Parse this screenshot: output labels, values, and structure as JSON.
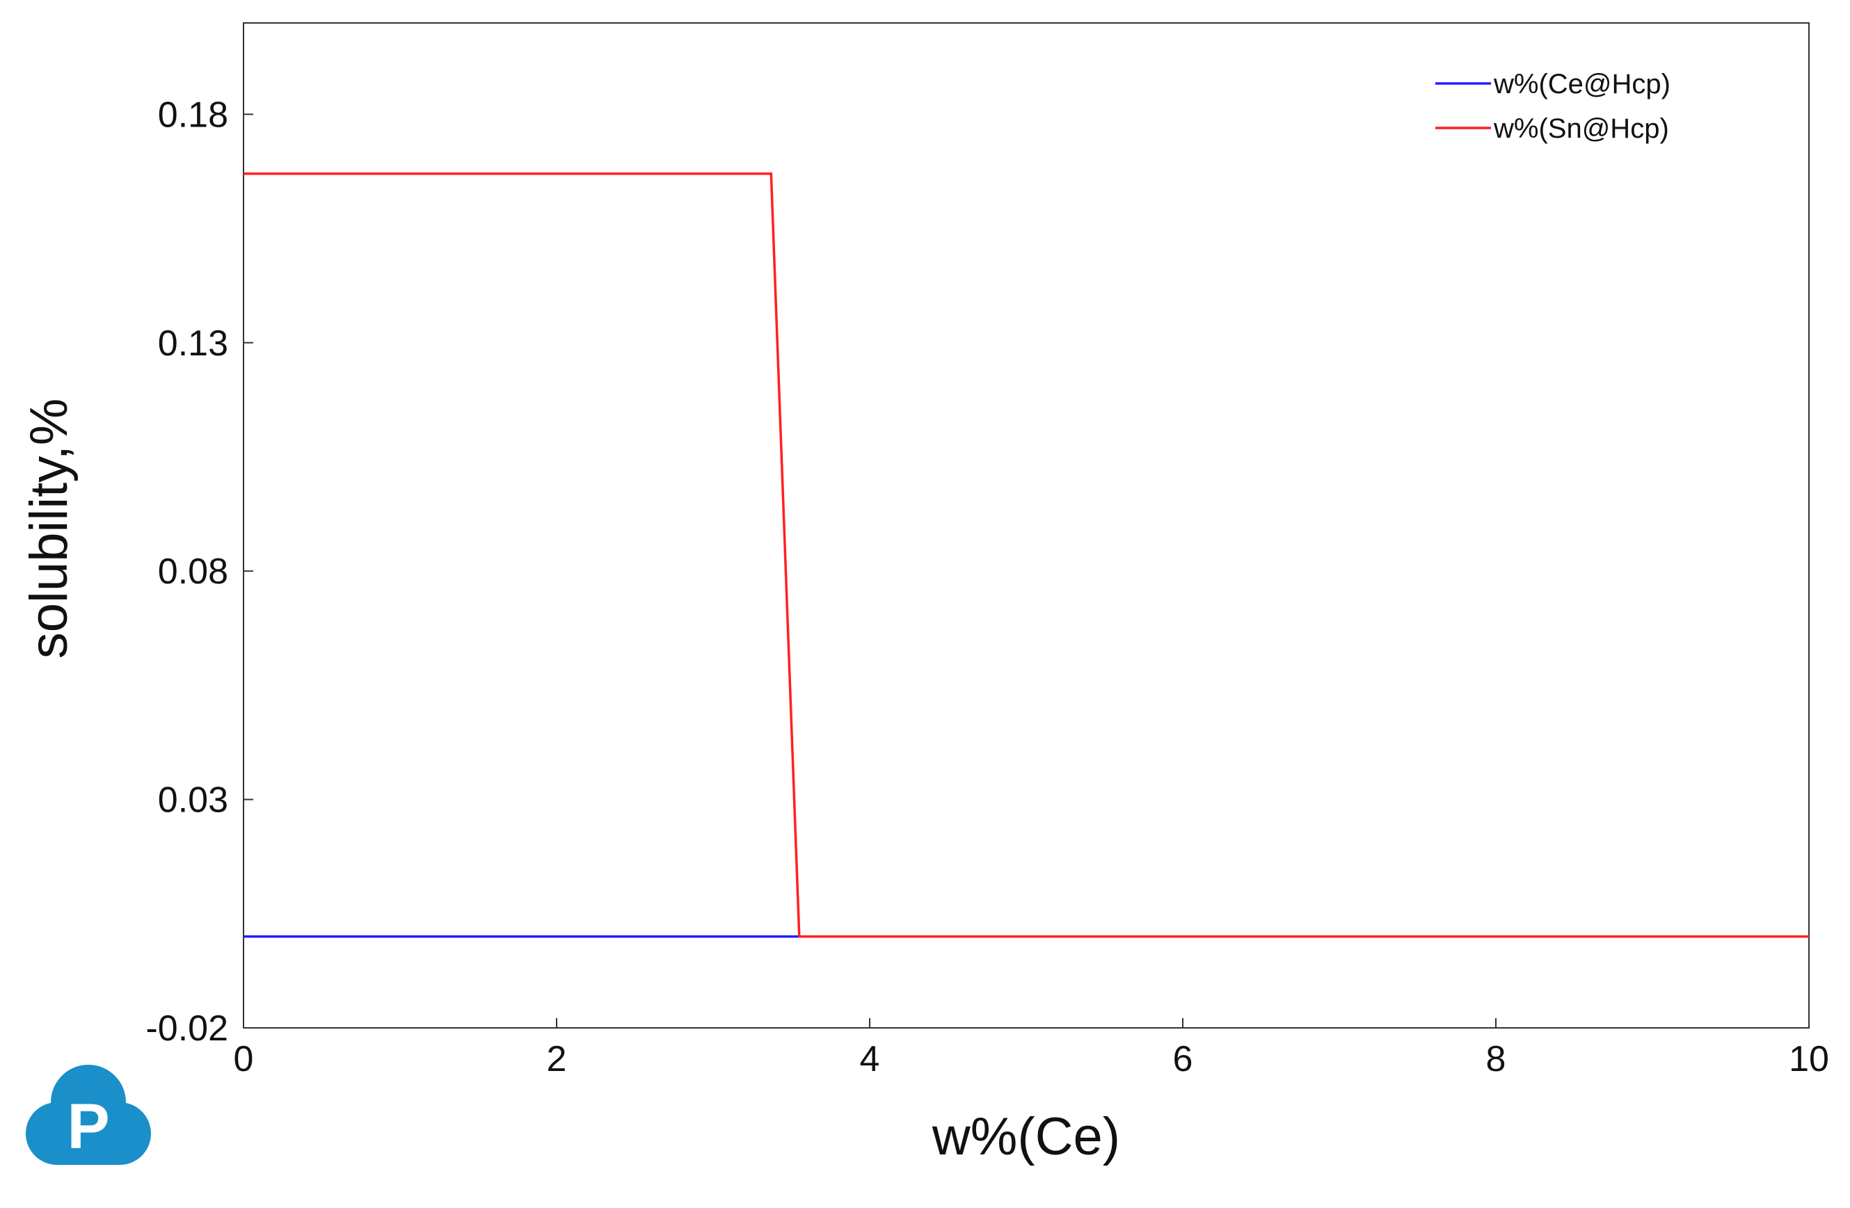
{
  "chart_data": {
    "type": "line",
    "title": "",
    "xlabel": "w%(Ce)",
    "ylabel": "solubility,%",
    "xlim": [
      0,
      10
    ],
    "ylim": [
      -0.02,
      0.2
    ],
    "x_ticks": [
      0,
      2,
      4,
      6,
      8,
      10
    ],
    "x_tick_labels": [
      "0",
      "2",
      "4",
      "6",
      "8",
      "10"
    ],
    "y_ticks": [
      -0.02,
      0.03,
      0.08,
      0.13,
      0.18
    ],
    "y_tick_labels": [
      "-0.02",
      "0.03",
      "0.08",
      "0.13",
      "0.18"
    ],
    "grid": false,
    "legend_position": "top-right",
    "series": [
      {
        "name": "w%(Ce@Hcp)",
        "color": "#1f1fff",
        "x": [
          0,
          3.55
        ],
        "y": [
          0,
          0
        ]
      },
      {
        "name": "w%(Sn@Hcp)",
        "color": "#ff2020",
        "x": [
          0,
          3.37,
          3.55,
          10
        ],
        "y": [
          0.167,
          0.167,
          0,
          0
        ]
      }
    ]
  },
  "logo": {
    "letter": "P",
    "color": "#1a8fc9",
    "icon": "cloud-p-logo-icon"
  }
}
